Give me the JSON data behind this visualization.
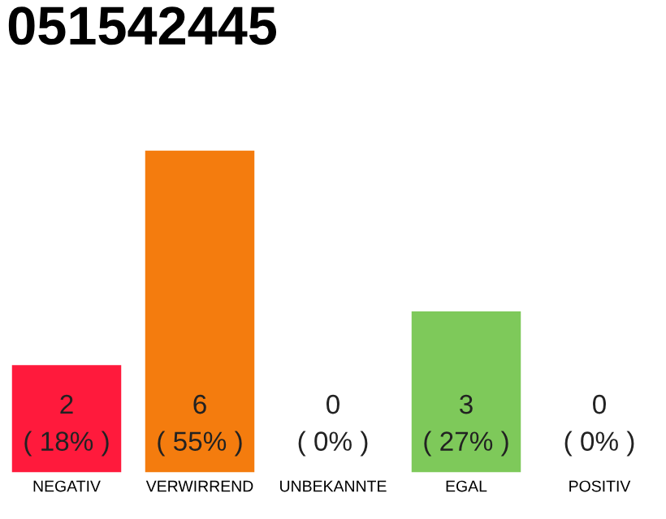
{
  "chart_data": {
    "type": "bar",
    "title": "051542445",
    "categories": [
      "NEGATIV",
      "VERWIRREND",
      "UNBEKANNTE",
      "EGAL",
      "POSITIV"
    ],
    "values": [
      2,
      6,
      0,
      3,
      0
    ],
    "colors": [
      "#ff1a3c",
      "#f47c0e",
      "#cccccc",
      "#7ec95a",
      "#cccccc"
    ],
    "value_labels": [
      "2\n( 18% )",
      "6\n( 55% )",
      "0\n( 0% )",
      "3\n( 27% )",
      "0\n( 0% )"
    ],
    "grid": false,
    "legend": false
  }
}
